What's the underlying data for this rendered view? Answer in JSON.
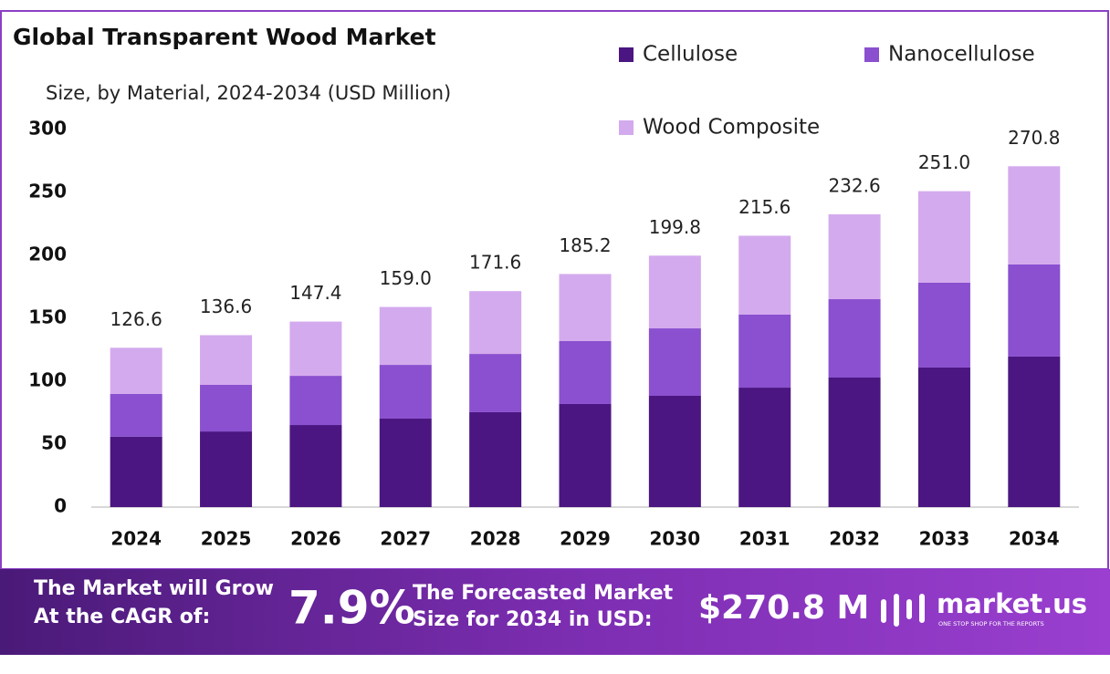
{
  "chart_data": {
    "type": "stacked_bar",
    "title": "Global Transparent Wood Market",
    "subtitle": "Size, by Material, 2024-2034 (USD Million)",
    "categories": [
      "2024",
      "2025",
      "2026",
      "2027",
      "2028",
      "2029",
      "2030",
      "2031",
      "2032",
      "2033",
      "2034"
    ],
    "series": [
      {
        "name": "Cellulose",
        "color": "#4b1681",
        "values": [
          56,
          60.1,
          65.2,
          70.3,
          75.4,
          81.9,
          88.4,
          94.9,
          102.9,
          110.9,
          119.6
        ]
      },
      {
        "name": "Nanocellulose",
        "color": "#8a50cf",
        "values": [
          34,
          37,
          39.1,
          42.7,
          46.3,
          50,
          53.6,
          58,
          62.3,
          67.4,
          73.2
        ]
      },
      {
        "name": "Wood Composite",
        "color": "#d4aaee",
        "values": [
          36.6,
          39.5,
          43.1,
          46,
          49.9,
          53.3,
          57.8,
          62.7,
          67.4,
          72.7,
          78
        ]
      }
    ],
    "totals": [
      126.6,
      136.6,
      147.4,
      159,
      171.6,
      185.2,
      199.8,
      215.6,
      232.6,
      251,
      270.8
    ],
    "total_labels": [
      "126.6",
      "136.6",
      "147.4",
      "159.0",
      "171.6",
      "185.2",
      "199.8",
      "215.6",
      "232.6",
      "251.0",
      "270.8"
    ],
    "ylim": [
      0,
      300
    ],
    "yticks": [
      0,
      50,
      100,
      150,
      200,
      250,
      300
    ],
    "grid": false
  },
  "footer": {
    "cagr_text": "The Market will Grow At the CAGR of:",
    "cagr_value": "7.9%",
    "size_text": "The Forecasted Market Size for 2034 in USD:",
    "size_value": "$270.8 M",
    "brand": "market.us",
    "tagline": "ONE STOP SHOP FOR THE REPORTS"
  }
}
